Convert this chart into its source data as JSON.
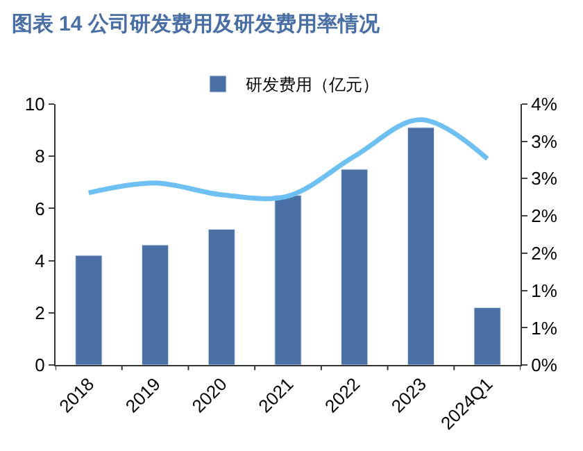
{
  "chart_data": {
    "type": "bar",
    "title": "图表 14 公司研发费用及研发费用率情况",
    "categories": [
      "2018",
      "2019",
      "2020",
      "2021",
      "2022",
      "2023",
      "2024Q1"
    ],
    "series": [
      {
        "name": "研发费用（亿元）",
        "color": "#4a70a5",
        "values": [
          4.2,
          4.6,
          5.2,
          6.5,
          7.5,
          9.1,
          2.2
        ]
      },
      {
        "type": "line",
        "axis": "y2",
        "color": "#6ec0f2",
        "values": [
          2.64,
          2.79,
          2.61,
          2.59,
          3.2,
          3.76,
          3.16
        ]
      }
    ],
    "ylim": [
      0,
      10
    ],
    "yticks": [
      0,
      2,
      4,
      6,
      8,
      10
    ],
    "y2lim": [
      0,
      4
    ],
    "y2ticks": [
      {
        "value": 0,
        "label": "0%"
      },
      {
        "value": 0.57,
        "label": "1%"
      },
      {
        "value": 1.14,
        "label": "1%"
      },
      {
        "value": 1.71,
        "label": "2%"
      },
      {
        "value": 2.29,
        "label": "2%"
      },
      {
        "value": 2.86,
        "label": "3%"
      },
      {
        "value": 3.43,
        "label": "3%"
      },
      {
        "value": 4,
        "label": "4%"
      }
    ],
    "legend": "top"
  }
}
